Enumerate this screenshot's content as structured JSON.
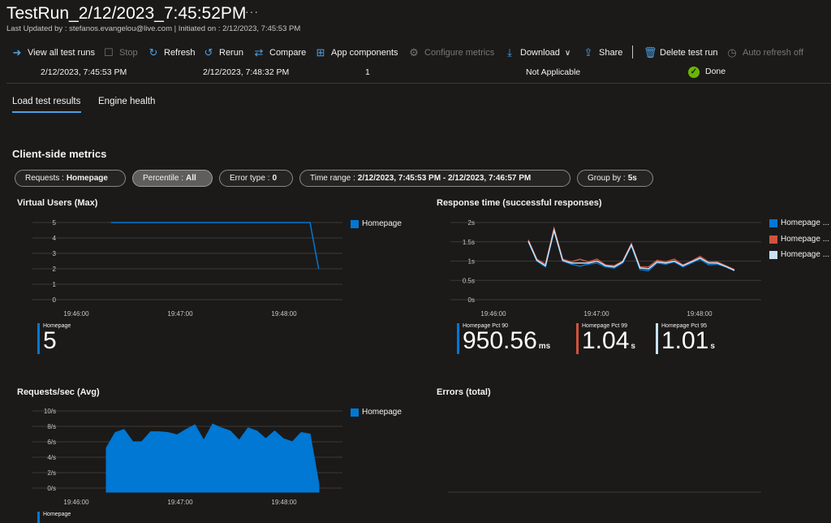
{
  "header": {
    "title": "TestRun_2/12/2023_7:45:52PM",
    "more": "···",
    "subtitle": "Last Updated by : stefanos.evangelou@live.com | Initiated on : 2/12/2023, 7:45:53 PM"
  },
  "toolbar": {
    "view_all": "View all test runs",
    "stop": "Stop",
    "refresh": "Refresh",
    "rerun": "Rerun",
    "compare": "Compare",
    "app_components": "App components",
    "configure_metrics": "Configure metrics",
    "download": "Download",
    "share": "Share",
    "delete": "Delete test run",
    "auto_refresh": "Auto refresh off"
  },
  "run_row": {
    "start": "2/12/2023, 7:45:53 PM",
    "end": "2/12/2023, 7:48:32 PM",
    "engines": "1",
    "criteria": "Not Applicable",
    "status": "Done"
  },
  "tabs": [
    "Load test results",
    "Engine health"
  ],
  "section_title": "Client-side metrics",
  "filters": [
    {
      "key": "Requests :",
      "value": "Homepage"
    },
    {
      "key": "Percentile :",
      "value": "All"
    },
    {
      "key": "Error type :",
      "value": "0"
    },
    {
      "key": "Time range :",
      "value": "2/12/2023, 7:45:53 PM - 2/12/2023, 7:46:57 PM"
    },
    {
      "key": "Group by :",
      "value": "5s"
    }
  ],
  "colors": {
    "accent": "#4aa0e6",
    "blue": "#0078d4",
    "red": "#d0533b",
    "lightblue": "#c7e0f4",
    "green": "#6bb700"
  },
  "charts": {
    "vu": {
      "title": "Virtual Users (Max)",
      "legend": "Homepage",
      "stat_label": "Homepage",
      "stat_value": "5",
      "stat_unit": ""
    },
    "rt": {
      "title": "Response time (successful responses)",
      "legend": [
        "Homepage ...",
        "Homepage ...",
        "Homepage ..."
      ],
      "stats": [
        {
          "label": "Homepage Pct 90",
          "value": "950.56",
          "unit": "ms"
        },
        {
          "label": "Homepage Pct 99",
          "value": "1.04",
          "unit": "s"
        },
        {
          "label": "Homepage Pct 95",
          "value": "1.01",
          "unit": "s"
        }
      ]
    },
    "rps": {
      "title": "Requests/sec (Avg)",
      "legend": "Homepage",
      "stat_label": "Homepage"
    },
    "errors": {
      "title": "Errors (total)"
    }
  },
  "chart_data": [
    {
      "type": "line",
      "title": "Virtual Users (Max)",
      "x_ticks": [
        "19:46:00",
        "19:47:00",
        "19:48:00"
      ],
      "y_ticks": [
        "0",
        "1",
        "2",
        "3",
        "4",
        "5"
      ],
      "ylim": [
        0,
        5
      ],
      "series": [
        {
          "name": "Homepage",
          "x": [
            "19:46:20",
            "19:48:15",
            "19:48:20"
          ],
          "values": [
            5,
            5,
            2
          ]
        }
      ]
    },
    {
      "type": "line",
      "title": "Response time (successful responses)",
      "x_ticks": [
        "19:46:00",
        "19:47:00",
        "19:48:00"
      ],
      "y_ticks": [
        "0s",
        "0.5s",
        "1s",
        "1.5s",
        "2s"
      ],
      "ylim": [
        0,
        2
      ],
      "series": [
        {
          "name": "Homepage ...",
          "values": [
            1.5,
            1.0,
            0.85,
            1.78,
            1.0,
            0.92,
            0.87,
            0.92,
            0.95,
            0.85,
            0.82,
            0.95,
            1.4,
            0.78,
            0.75,
            0.95,
            0.92,
            0.98,
            0.85,
            0.95,
            1.05,
            0.9,
            0.92,
            0.85,
            0.75
          ]
        },
        {
          "name": "Homepage ...",
          "values": [
            1.55,
            1.05,
            0.92,
            1.85,
            1.05,
            0.98,
            1.05,
            0.98,
            1.05,
            0.9,
            0.88,
            1.0,
            1.45,
            0.85,
            0.85,
            1.02,
            0.98,
            1.05,
            0.9,
            1.0,
            1.12,
            0.98,
            0.98,
            0.88,
            0.78
          ]
        },
        {
          "name": "Homepage ...",
          "values": [
            1.52,
            1.02,
            0.88,
            1.8,
            1.02,
            0.95,
            0.95,
            0.95,
            1.0,
            0.88,
            0.85,
            0.98,
            1.42,
            0.82,
            0.8,
            0.98,
            0.95,
            1.0,
            0.88,
            0.98,
            1.08,
            0.95,
            0.95,
            0.86,
            0.76
          ]
        }
      ]
    },
    {
      "type": "area",
      "title": "Requests/sec (Avg)",
      "x_ticks": [
        "19:46:00",
        "19:47:00",
        "19:48:00"
      ],
      "y_ticks": [
        "0/s",
        "2/s",
        "4/s",
        "6/s",
        "8/s",
        "10/s"
      ],
      "ylim": [
        0,
        10
      ],
      "series": [
        {
          "name": "Homepage",
          "values": [
            5.2,
            7.2,
            7.6,
            6.0,
            6.0,
            7.3,
            7.3,
            7.2,
            6.9,
            7.6,
            8.2,
            6.2,
            8.3,
            7.8,
            7.4,
            6.2,
            7.8,
            7.4,
            6.4,
            7.4,
            6.4,
            6.0,
            7.2,
            7.0,
            0.5
          ]
        }
      ]
    }
  ]
}
